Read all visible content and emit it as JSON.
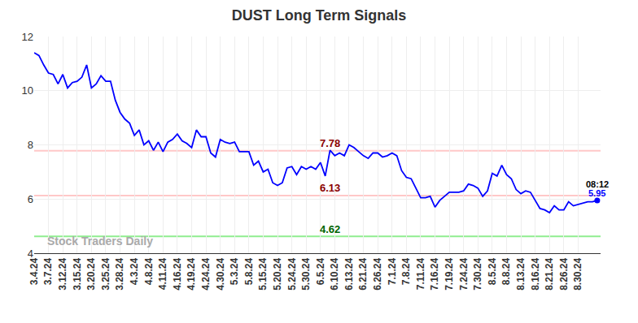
{
  "chart_data": {
    "type": "line",
    "title": "DUST Long Term Signals",
    "color": "#0000ff",
    "grid": true,
    "ylim": [
      4,
      12
    ],
    "yticks": [
      4,
      6,
      8,
      10,
      12
    ],
    "categories": [
      "3.4.24",
      null,
      null,
      "3.7.24",
      null,
      null,
      "3.12.24",
      null,
      null,
      "3.15.24",
      null,
      null,
      "3.20.24",
      null,
      null,
      "3.25.24",
      null,
      null,
      "3.28.24",
      null,
      null,
      "4.3.24",
      null,
      null,
      "4.8.24",
      null,
      null,
      "4.11.24",
      null,
      null,
      "4.16.24",
      null,
      null,
      "4.19.24",
      null,
      null,
      "4.24.24",
      null,
      null,
      "4.30.24",
      null,
      null,
      "5.3.24",
      null,
      null,
      "5.8.24",
      null,
      null,
      "5.15.24",
      null,
      null,
      "5.20.24",
      null,
      null,
      "5.24.24",
      null,
      null,
      "5.30.24",
      null,
      null,
      "6.5.24",
      null,
      null,
      "6.10.24",
      null,
      null,
      "6.13.24",
      null,
      null,
      "6.21.24",
      null,
      null,
      "6.26.24",
      null,
      null,
      "7.1.24",
      null,
      null,
      "7.8.24",
      null,
      null,
      "7.11.24",
      null,
      null,
      "7.16.24",
      null,
      null,
      "7.19.24",
      null,
      null,
      "7.24.24",
      null,
      null,
      "7.30.24",
      null,
      null,
      "8.5.24",
      null,
      null,
      "8.8.24",
      null,
      null,
      "8.13.24",
      null,
      null,
      "8.16.24",
      null,
      null,
      "8.21.24",
      null,
      null,
      "8.26.24",
      null,
      null,
      "8.30.24",
      null,
      null,
      null,
      null
    ],
    "values": [
      11.4,
      11.3,
      10.95,
      10.65,
      10.6,
      10.25,
      10.6,
      10.1,
      10.3,
      10.35,
      10.5,
      10.95,
      10.1,
      10.25,
      10.55,
      10.35,
      10.35,
      9.65,
      9.2,
      8.95,
      8.8,
      8.35,
      8.55,
      8.0,
      8.15,
      7.8,
      8.1,
      7.75,
      8.1,
      8.2,
      8.4,
      8.15,
      8.05,
      7.9,
      8.55,
      8.3,
      8.3,
      7.7,
      7.55,
      8.2,
      8.1,
      8.05,
      8.1,
      7.75,
      7.75,
      7.75,
      7.25,
      7.4,
      7.0,
      7.1,
      6.6,
      6.5,
      6.6,
      7.15,
      7.2,
      6.9,
      7.2,
      7.1,
      7.2,
      7.1,
      7.35,
      6.85,
      7.8,
      7.6,
      7.7,
      7.6,
      8.0,
      7.9,
      7.75,
      7.6,
      7.5,
      7.7,
      7.7,
      7.55,
      7.6,
      7.7,
      7.6,
      7.05,
      6.8,
      6.75,
      6.4,
      6.05,
      6.05,
      6.1,
      5.7,
      5.95,
      6.1,
      6.25,
      6.25,
      6.25,
      6.3,
      6.55,
      6.5,
      6.4,
      6.1,
      6.3,
      6.95,
      6.85,
      7.25,
      6.9,
      6.75,
      6.35,
      6.2,
      6.3,
      6.25,
      5.95,
      5.65,
      5.6,
      5.5,
      5.75,
      5.6,
      5.6,
      5.9,
      5.75,
      5.8,
      5.85,
      5.9,
      5.9,
      5.95
    ],
    "levels": [
      {
        "value": 7.78,
        "color": "#ffc8c8",
        "label_color": "#8b0000"
      },
      {
        "value": 6.13,
        "color": "#ffc8c8",
        "label_color": "#8b0000"
      },
      {
        "value": 4.62,
        "color": "#90ee90",
        "label_color": "#006400"
      }
    ],
    "last_time": "08:12",
    "watermark": "Stock Traders Daily"
  }
}
